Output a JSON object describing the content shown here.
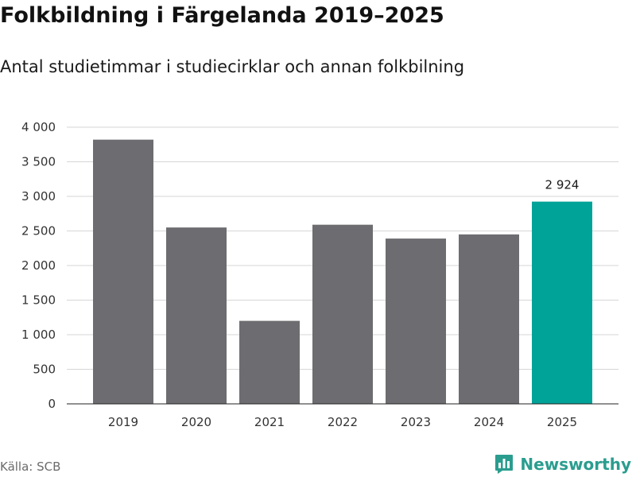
{
  "header": {
    "title": "Folkbildning i Färgelanda 2019–2025",
    "subtitle": "Antal studietimmar i studiecirklar och annan folkbilning"
  },
  "footer": {
    "source": "Källa: SCB",
    "brand_name": "Newsworthy"
  },
  "icons": {
    "brand": "newsworthy-logo-icon"
  },
  "colors": {
    "bar_default": "#6d6c70",
    "bar_highlight": "#00a398",
    "brand": "#2a9d8f"
  },
  "chart_data": {
    "type": "bar",
    "title": "Folkbildning i Färgelanda 2019–2025",
    "subtitle": "Antal studietimmar i studiecirklar och annan folkbilning",
    "categories": [
      "2019",
      "2020",
      "2021",
      "2022",
      "2023",
      "2024",
      "2025"
    ],
    "values": [
      3820,
      2550,
      1200,
      2590,
      2390,
      2450,
      2924
    ],
    "highlight_index": 6,
    "data_labels": [
      {
        "index": 6,
        "text": "2 924"
      }
    ],
    "ylim": [
      0,
      4000
    ],
    "yticks": [
      {
        "value": 0,
        "label": "0"
      },
      {
        "value": 500,
        "label": "500"
      },
      {
        "value": 1000,
        "label": "1 000"
      },
      {
        "value": 1500,
        "label": "1 500"
      },
      {
        "value": 2000,
        "label": "2 000"
      },
      {
        "value": 2500,
        "label": "2 500"
      },
      {
        "value": 3000,
        "label": "3 000"
      },
      {
        "value": 3500,
        "label": "3 500"
      },
      {
        "value": 4000,
        "label": "4 000"
      }
    ],
    "xlabel": "",
    "ylabel": "",
    "grid": true,
    "legend": "none"
  }
}
